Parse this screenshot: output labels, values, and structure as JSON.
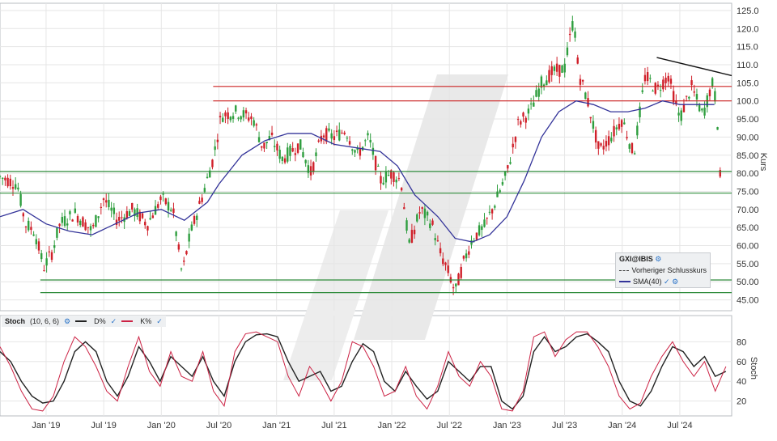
{
  "chart_data": [
    {
      "type": "candlestick",
      "ylabel": "Kurs",
      "ylim": [
        42,
        127
      ],
      "yticks": [
        "45.00",
        "50.00",
        "55.00",
        "60.00",
        "65.00",
        "70.00",
        "75.00",
        "80.00",
        "85.00",
        "90.00",
        "95.00",
        "100.0",
        "105.0",
        "110.0",
        "115.0",
        "120.0",
        "125.0"
      ],
      "ytick_values": [
        45,
        50,
        55,
        60,
        65,
        70,
        75,
        80,
        85,
        90,
        95,
        100,
        105,
        110,
        115,
        120,
        125
      ],
      "xticks": [
        "Jan '19",
        "Jul '19",
        "Jan '20",
        "Jul '20",
        "Jan '21",
        "Jul '21",
        "Jan '22",
        "Jul '22",
        "Jan '23",
        "Jul '23",
        "Jan '24",
        "Jul '24"
      ],
      "xtick_values": [
        2019.0,
        2019.5,
        2020.0,
        2020.5,
        2021.0,
        2021.5,
        2022.0,
        2022.5,
        2023.0,
        2023.5,
        2024.0,
        2024.5
      ],
      "xlim": [
        2018.6,
        2024.95
      ],
      "price_path": [
        [
          2018.6,
          79
        ],
        [
          2018.75,
          77
        ],
        [
          2018.82,
          66
        ],
        [
          2018.9,
          64
        ],
        [
          2018.98,
          54
        ],
        [
          2019.05,
          58
        ],
        [
          2019.12,
          66
        ],
        [
          2019.25,
          69
        ],
        [
          2019.4,
          64
        ],
        [
          2019.5,
          73
        ],
        [
          2019.62,
          67
        ],
        [
          2019.75,
          70
        ],
        [
          2019.88,
          66
        ],
        [
          2020.0,
          73
        ],
        [
          2020.1,
          70
        ],
        [
          2020.18,
          52
        ],
        [
          2020.25,
          63
        ],
        [
          2020.35,
          73
        ],
        [
          2020.45,
          84
        ],
        [
          2020.52,
          96
        ],
        [
          2020.65,
          97
        ],
        [
          2020.8,
          95
        ],
        [
          2020.88,
          87
        ],
        [
          2020.95,
          90
        ],
        [
          2021.05,
          84
        ],
        [
          2021.2,
          88
        ],
        [
          2021.3,
          80
        ],
        [
          2021.4,
          91
        ],
        [
          2021.5,
          90
        ],
        [
          2021.6,
          92
        ],
        [
          2021.7,
          85
        ],
        [
          2021.8,
          90
        ],
        [
          2021.9,
          78
        ],
        [
          2022.0,
          80
        ],
        [
          2022.08,
          78
        ],
        [
          2022.15,
          60
        ],
        [
          2022.25,
          70
        ],
        [
          2022.35,
          66
        ],
        [
          2022.42,
          58
        ],
        [
          2022.5,
          52
        ],
        [
          2022.55,
          47
        ],
        [
          2022.62,
          55
        ],
        [
          2022.7,
          62
        ],
        [
          2022.8,
          65
        ],
        [
          2022.9,
          72
        ],
        [
          2023.0,
          80
        ],
        [
          2023.1,
          94
        ],
        [
          2023.2,
          97
        ],
        [
          2023.3,
          105
        ],
        [
          2023.4,
          108
        ],
        [
          2023.5,
          109
        ],
        [
          2023.55,
          118
        ],
        [
          2023.58,
          123
        ],
        [
          2023.62,
          108
        ],
        [
          2023.7,
          100
        ],
        [
          2023.8,
          86
        ],
        [
          2023.9,
          90
        ],
        [
          2024.0,
          95
        ],
        [
          2024.1,
          85
        ],
        [
          2024.2,
          107
        ],
        [
          2024.3,
          103
        ],
        [
          2024.4,
          107
        ],
        [
          2024.5,
          95
        ],
        [
          2024.6,
          104
        ],
        [
          2024.7,
          96
        ],
        [
          2024.78,
          105
        ],
        [
          2024.82,
          99
        ],
        [
          2024.85,
          79
        ]
      ],
      "sma_path": [
        [
          2018.6,
          68
        ],
        [
          2018.8,
          70
        ],
        [
          2019.0,
          66
        ],
        [
          2019.2,
          64
        ],
        [
          2019.4,
          63
        ],
        [
          2019.6,
          66
        ],
        [
          2019.8,
          69
        ],
        [
          2020.0,
          70
        ],
        [
          2020.2,
          67
        ],
        [
          2020.4,
          72
        ],
        [
          2020.5,
          77
        ],
        [
          2020.7,
          85
        ],
        [
          2020.9,
          89
        ],
        [
          2021.1,
          91
        ],
        [
          2021.3,
          91
        ],
        [
          2021.5,
          88
        ],
        [
          2021.7,
          87
        ],
        [
          2021.9,
          86
        ],
        [
          2022.05,
          82
        ],
        [
          2022.2,
          74
        ],
        [
          2022.4,
          68
        ],
        [
          2022.55,
          62
        ],
        [
          2022.7,
          61
        ],
        [
          2022.85,
          63
        ],
        [
          2023.0,
          68
        ],
        [
          2023.15,
          78
        ],
        [
          2023.3,
          90
        ],
        [
          2023.45,
          97
        ],
        [
          2023.6,
          100
        ],
        [
          2023.75,
          99
        ],
        [
          2023.9,
          97
        ],
        [
          2024.05,
          97
        ],
        [
          2024.2,
          98
        ],
        [
          2024.35,
          100
        ],
        [
          2024.5,
          99
        ],
        [
          2024.65,
          99
        ],
        [
          2024.8,
          99
        ]
      ],
      "horizontal_lines": [
        {
          "value": 104,
          "color": "#cc2222"
        },
        {
          "value": 100,
          "color": "#cc2222"
        },
        {
          "value": 80.5,
          "color": "#2e8b3a"
        },
        {
          "value": 74.5,
          "color": "#2e8b3a"
        },
        {
          "value": 50.5,
          "color": "#2e8b3a"
        },
        {
          "value": 47,
          "color": "#2e8b3a"
        }
      ],
      "trendline": {
        "x1": 2024.3,
        "y1": 112,
        "x2": 2024.95,
        "y2": 107
      },
      "legend": {
        "symbol": "GXI@IBIS",
        "items": [
          "Vorheriger Schlusskurs",
          "SMA(40)"
        ]
      },
      "colors": {
        "up": "#2e9e3e",
        "down": "#d0202a",
        "sma": "#333399",
        "trend": "#111111"
      }
    },
    {
      "type": "line",
      "title": "Stoch",
      "params": "(10, 6, 6)",
      "ylabel": "Stoch",
      "ylim": [
        5,
        95
      ],
      "yticks": [
        "20",
        "40",
        "60",
        "80"
      ],
      "ytick_values": [
        20,
        40,
        60,
        80
      ],
      "series": [
        {
          "name": "D%",
          "color": "#222222",
          "values": [
            70,
            60,
            40,
            25,
            18,
            20,
            40,
            70,
            80,
            70,
            40,
            25,
            45,
            75,
            60,
            40,
            65,
            55,
            45,
            65,
            40,
            25,
            60,
            80,
            87,
            88,
            85,
            60,
            40,
            45,
            50,
            30,
            35,
            60,
            78,
            70,
            40,
            30,
            50,
            35,
            22,
            30,
            60,
            50,
            40,
            55,
            55,
            20,
            12,
            25,
            70,
            85,
            70,
            75,
            85,
            88,
            80,
            70,
            40,
            20,
            15,
            30,
            55,
            75,
            70,
            55,
            65,
            45,
            50
          ]
        },
        {
          "name": "K%",
          "color": "#cc2244",
          "values": [
            75,
            55,
            30,
            12,
            10,
            25,
            60,
            85,
            75,
            55,
            30,
            20,
            55,
            85,
            50,
            35,
            70,
            45,
            40,
            70,
            30,
            15,
            70,
            88,
            90,
            85,
            80,
            45,
            25,
            55,
            40,
            20,
            40,
            80,
            75,
            55,
            25,
            30,
            55,
            25,
            12,
            35,
            70,
            45,
            35,
            60,
            45,
            12,
            10,
            30,
            85,
            90,
            65,
            82,
            90,
            90,
            75,
            55,
            25,
            12,
            18,
            45,
            65,
            80,
            60,
            45,
            60,
            30,
            55
          ]
        }
      ]
    }
  ]
}
